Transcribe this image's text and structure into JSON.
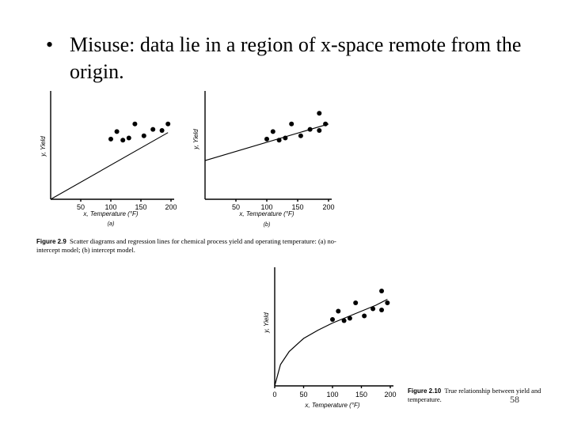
{
  "slide": {
    "bullet": "Misuse: data lie in a region of x-space remote from the origin.",
    "page_number": "58"
  },
  "figure29": {
    "label": "Figure 2.9",
    "text": "Scatter diagrams and regression lines for chemical process yield and operating temperature: (a) no-intercept model; (b) intercept model."
  },
  "figure210": {
    "label": "Figure 2.10",
    "text": "True relationship between yield and temperature."
  },
  "chart_data": [
    {
      "type": "scatter",
      "title": "",
      "sublabel": "(a)",
      "xlabel": "x, Temperature (°F)",
      "ylabel": "y, Yield",
      "xticks": [
        50,
        100,
        150,
        200
      ],
      "xlim": [
        0,
        200
      ],
      "ylim": [
        0,
        1
      ],
      "points": [
        [
          100,
          0.56
        ],
        [
          110,
          0.63
        ],
        [
          120,
          0.55
        ],
        [
          130,
          0.57
        ],
        [
          140,
          0.7
        ],
        [
          155,
          0.59
        ],
        [
          170,
          0.65
        ],
        [
          185,
          0.64
        ],
        [
          195,
          0.7
        ]
      ],
      "fit_line": [
        [
          0,
          0
        ],
        [
          195,
          0.62
        ]
      ]
    },
    {
      "type": "scatter",
      "title": "",
      "sublabel": "(b)",
      "xlabel": "x, Temperature (°F)",
      "ylabel": "y, Yield",
      "xticks": [
        50,
        100,
        150,
        200
      ],
      "xlim": [
        0,
        200
      ],
      "ylim": [
        0,
        1
      ],
      "points": [
        [
          100,
          0.56
        ],
        [
          110,
          0.63
        ],
        [
          120,
          0.55
        ],
        [
          130,
          0.57
        ],
        [
          140,
          0.7
        ],
        [
          155,
          0.59
        ],
        [
          170,
          0.65
        ],
        [
          185,
          0.64
        ],
        [
          185,
          0.8
        ],
        [
          195,
          0.7
        ]
      ],
      "fit_line": [
        [
          0,
          0.36
        ],
        [
          200,
          0.7
        ]
      ]
    },
    {
      "type": "scatter",
      "title": "",
      "xlabel": "x, Temperature (°F)",
      "ylabel": "y, Yield",
      "xticks": [
        0,
        50,
        100,
        150,
        200
      ],
      "xlim": [
        0,
        200
      ],
      "ylim": [
        0,
        1
      ],
      "points": [
        [
          100,
          0.56
        ],
        [
          110,
          0.63
        ],
        [
          120,
          0.55
        ],
        [
          130,
          0.57
        ],
        [
          140,
          0.7
        ],
        [
          155,
          0.59
        ],
        [
          170,
          0.65
        ],
        [
          185,
          0.64
        ],
        [
          185,
          0.8
        ],
        [
          195,
          0.7
        ]
      ],
      "curve": [
        [
          0,
          0
        ],
        [
          10,
          0.18
        ],
        [
          25,
          0.29
        ],
        [
          50,
          0.4
        ],
        [
          75,
          0.47
        ],
        [
          100,
          0.53
        ],
        [
          125,
          0.58
        ],
        [
          150,
          0.63
        ],
        [
          175,
          0.68
        ],
        [
          195,
          0.73
        ]
      ]
    }
  ]
}
